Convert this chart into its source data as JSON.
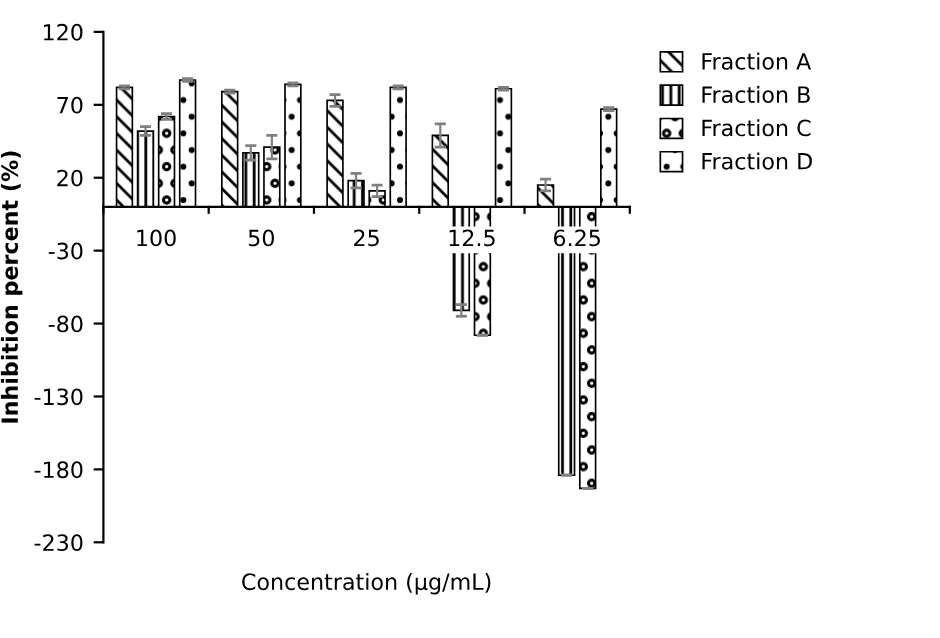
{
  "chart_data": {
    "type": "bar",
    "xlabel": "Concentration (µg/mL)",
    "ylabel": "Inhibition percent (%)",
    "categories": [
      "100",
      "50",
      "25",
      "12.5",
      "6.25"
    ],
    "series": [
      {
        "name": "Fraction A",
        "color": "#000000",
        "values": [
          82,
          79,
          73,
          49,
          15
        ],
        "errors": [
          1,
          1,
          4,
          8,
          4
        ]
      },
      {
        "name": "Fraction B",
        "color": "#000000",
        "values": [
          52,
          37,
          18,
          -71,
          -184
        ],
        "errors": [
          3,
          5,
          5,
          4,
          null
        ]
      },
      {
        "name": "Fraction C",
        "color": "#000000",
        "values": [
          62,
          41,
          11,
          -88,
          -193
        ],
        "errors": [
          2,
          8,
          4,
          null,
          null
        ]
      },
      {
        "name": "Fraction D",
        "color": "#000000",
        "values": [
          87,
          84,
          82,
          81,
          67
        ],
        "errors": [
          1,
          1,
          1,
          1,
          1
        ]
      }
    ],
    "ylim": [
      -230,
      120
    ],
    "yticks": [
      -230,
      -180,
      -130,
      -80,
      -30,
      20,
      70,
      120
    ],
    "grid": false,
    "legend": "right"
  }
}
